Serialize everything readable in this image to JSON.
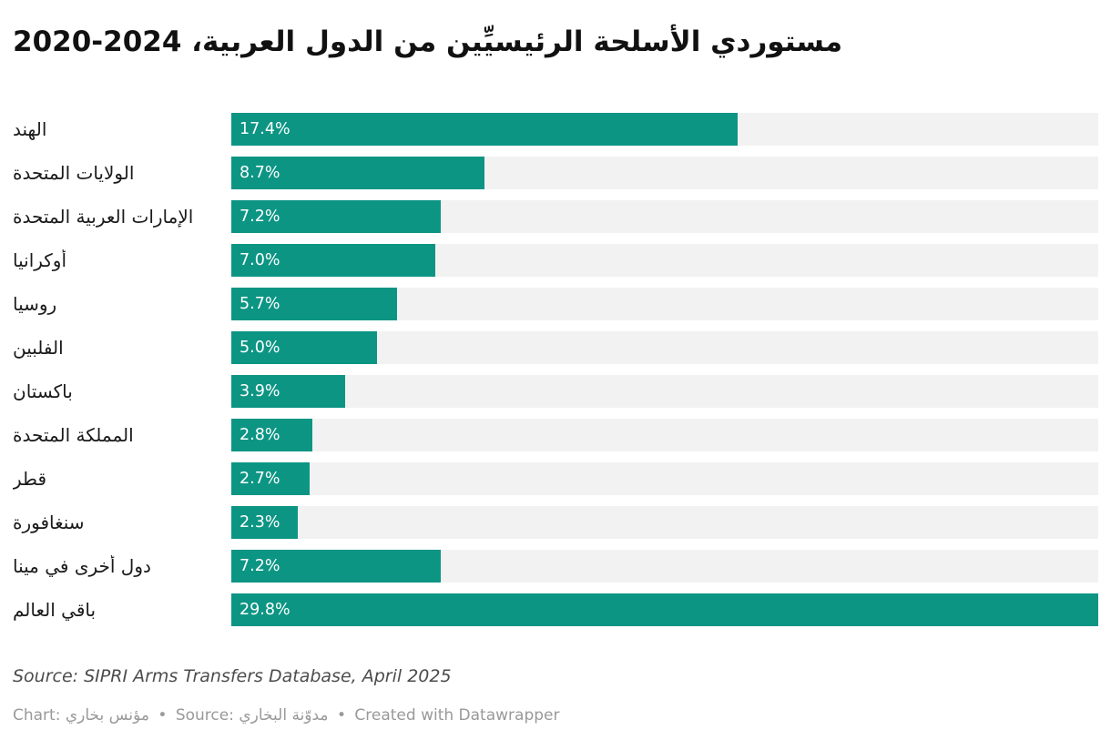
{
  "chart_data": {
    "type": "bar",
    "orientation": "horizontal",
    "title": "مستوردي الأسلحة الرئيسيِّين من الدول العربية، 2024-2020",
    "categories": [
      "الهند",
      "الولايات المتحدة",
      "الإمارات العربية المتحدة",
      "أوكرانيا",
      "روسيا",
      "الفلبين",
      "باكستان",
      "المملكة المتحدة",
      "قطر",
      "سنغافورة",
      "دول أخرى في مينا",
      "باقي العالم"
    ],
    "values": [
      17.4,
      8.7,
      7.2,
      7.0,
      5.7,
      5.0,
      3.9,
      2.8,
      2.7,
      2.3,
      7.2,
      29.8
    ],
    "value_labels": [
      "17.4%",
      "8.7%",
      "7.2%",
      "7.0%",
      "5.7%",
      "5.0%",
      "3.9%",
      "2.8%",
      "2.7%",
      "2.3%",
      "7.2%",
      "29.8%"
    ],
    "value_suffix": "%",
    "xlim": [
      0,
      29.8
    ],
    "grid": "off",
    "legend": "none",
    "bar_color": "#0d9584",
    "track_color": "#f2f2f2"
  },
  "source_note": "Source: SIPRI Arms Transfers Database, April 2025",
  "footer": {
    "chart_credit": "Chart: مؤنس بخاري",
    "source_credit": "Source: مدوّنة البخاري",
    "tool_credit": "Created with Datawrapper",
    "separator": "•"
  }
}
